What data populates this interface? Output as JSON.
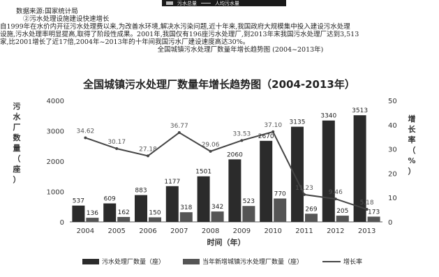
{
  "top_legend": {
    "bar_label": "污水总量",
    "line_label": "人均污水量"
  },
  "text": {
    "source": "数据来源:国家统计局",
    "subheading": "②污水处理设施建设快速增长",
    "para_line1": "自1999年在水价内开征污水处理费以来,为改善水环境,解决水污染问题,近十年来,我国政府大规模集中投入建设污水处理",
    "para_line2": "设施,污水处理率明显提高,取得了阶段性成果。2001年,我国仅有196座污水处理厂,到2013年末我国污水处理厂达到3,513",
    "para_line3": "家,比2001增长了近17倍,2004年~2013年的十年间我国污水厂建设速度高达30%。",
    "caption": "全国城镇污水处理厂数量年增长趋势图 (2004~2013年)"
  },
  "chart_data": {
    "type": "bar",
    "title": "全国城镇污水处理厂数量年增长趋势图（2004-2013年）",
    "categories": [
      "2004",
      "2005",
      "2006",
      "2007",
      "2008",
      "2009",
      "2010",
      "2011",
      "2012",
      "2013"
    ],
    "xlabel": "时间（年）",
    "ylabel_left": "污水厂数量（座）",
    "ylabel_right": "增长率（%）",
    "ylim_left": [
      0,
      4000
    ],
    "ylim_right": [
      0,
      50
    ],
    "yticks_left": [
      "0",
      "1000",
      "2000",
      "3000",
      "4000"
    ],
    "yticks_right": [
      "0",
      "10",
      "20",
      "30",
      "40",
      "50"
    ],
    "series": [
      {
        "name": "污水处理厂数量（座）",
        "kind": "bar",
        "color": "#2b2b2b",
        "values": [
          537,
          609,
          883,
          1177,
          1501,
          2060,
          2670,
          3135,
          3340,
          3513
        ]
      },
      {
        "name": "当年新增城镇污水处理厂数量（座）",
        "kind": "bar",
        "color": "#555555",
        "values": [
          136,
          162,
          150,
          318,
          342,
          523,
          770,
          269,
          205,
          173
        ]
      },
      {
        "name": "增长率",
        "kind": "line",
        "color": "#444444",
        "values": [
          34.62,
          30.17,
          27.18,
          36.77,
          29.06,
          33.53,
          37.1,
          11.23,
          9.46,
          5.18
        ]
      }
    ],
    "legend_position": "bottom",
    "grid": false
  }
}
